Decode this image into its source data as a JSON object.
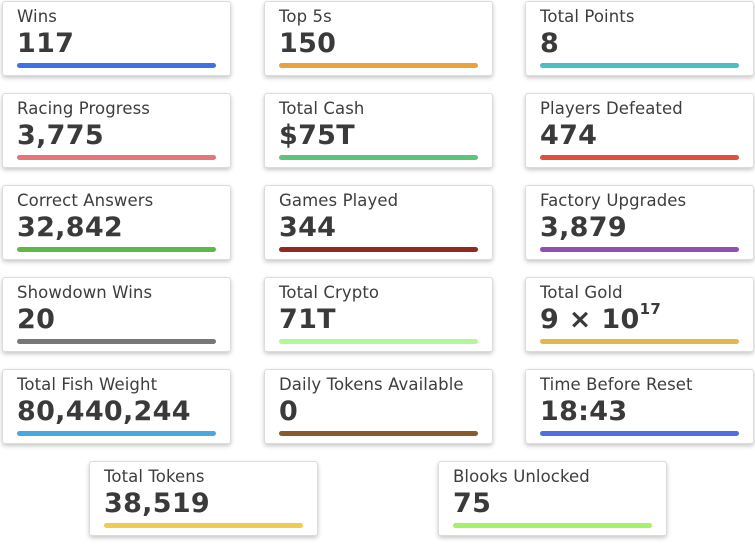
{
  "stats": [
    {
      "label": "Wins",
      "value": "117",
      "color": "#3e72e4"
    },
    {
      "label": "Top 5s",
      "value": "150",
      "color": "#e8a33d"
    },
    {
      "label": "Total Points",
      "value": "8",
      "color": "#4fbcc2"
    },
    {
      "label": "Racing Progress",
      "value": "3,775",
      "color": "#e87575"
    },
    {
      "label": "Total Cash",
      "value": "$75T",
      "color": "#5cc57a"
    },
    {
      "label": "Players Defeated",
      "value": "474",
      "color": "#e0503c"
    },
    {
      "label": "Correct Answers",
      "value": "32,842",
      "color": "#5dbb45"
    },
    {
      "label": "Games Played",
      "value": "344",
      "color": "#8f2a22"
    },
    {
      "label": "Factory Upgrades",
      "value": "3,879",
      "color": "#8e4fb8"
    },
    {
      "label": "Showdown Wins",
      "value": "20",
      "color": "#777777"
    },
    {
      "label": "Total Crypto",
      "value": "71T",
      "color": "#b2f79c"
    },
    {
      "label": "Total Gold",
      "value": "9 × 10",
      "exponent": "17",
      "color": "#e5b64a"
    },
    {
      "label": "Total Fish Weight",
      "value": "80,440,244",
      "color": "#4aa8de"
    },
    {
      "label": "Daily Tokens Available",
      "value": "0",
      "color": "#8b5a2b"
    },
    {
      "label": "Time Before Reset",
      "value": "18:43",
      "color": "#4f6fe0"
    },
    {
      "label": "Total Tokens",
      "value": "38,519",
      "color": "#efcb4f"
    },
    {
      "label": "Blooks Unlocked",
      "value": "75",
      "color": "#a4f26a"
    }
  ]
}
